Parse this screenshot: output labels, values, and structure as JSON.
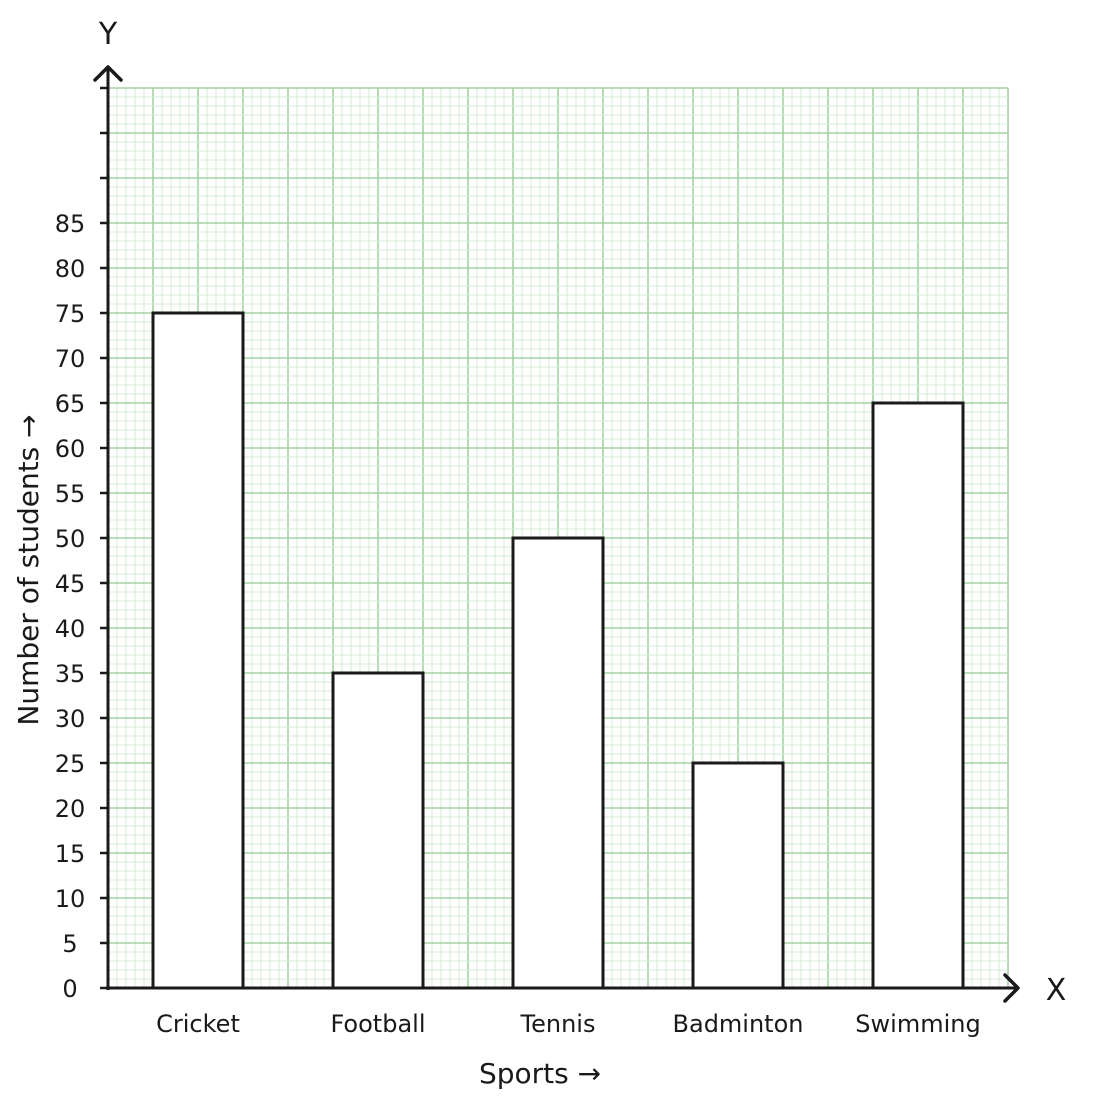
{
  "chart_data": {
    "type": "bar",
    "categories": [
      "Cricket",
      "Football",
      "Tennis",
      "Badminton",
      "Swimming"
    ],
    "values": [
      75,
      35,
      50,
      25,
      65
    ],
    "xlabel": "Sports →",
    "ylabel": "Number of students →",
    "x_axis_letter": "X",
    "y_axis_letter": "Y",
    "ylim": [
      0,
      100
    ],
    "yticks": [
      0,
      5,
      10,
      15,
      20,
      25,
      30,
      35,
      40,
      45,
      50,
      55,
      60,
      65,
      70,
      75,
      80,
      85
    ],
    "grid": true,
    "colors": {
      "grid_minor": "#d3ecd3",
      "grid_major": "#a3d3a3",
      "bar_fill": "#ffffff",
      "bar_stroke": "#1a1a1a",
      "axis": "#1a1a1a"
    }
  }
}
